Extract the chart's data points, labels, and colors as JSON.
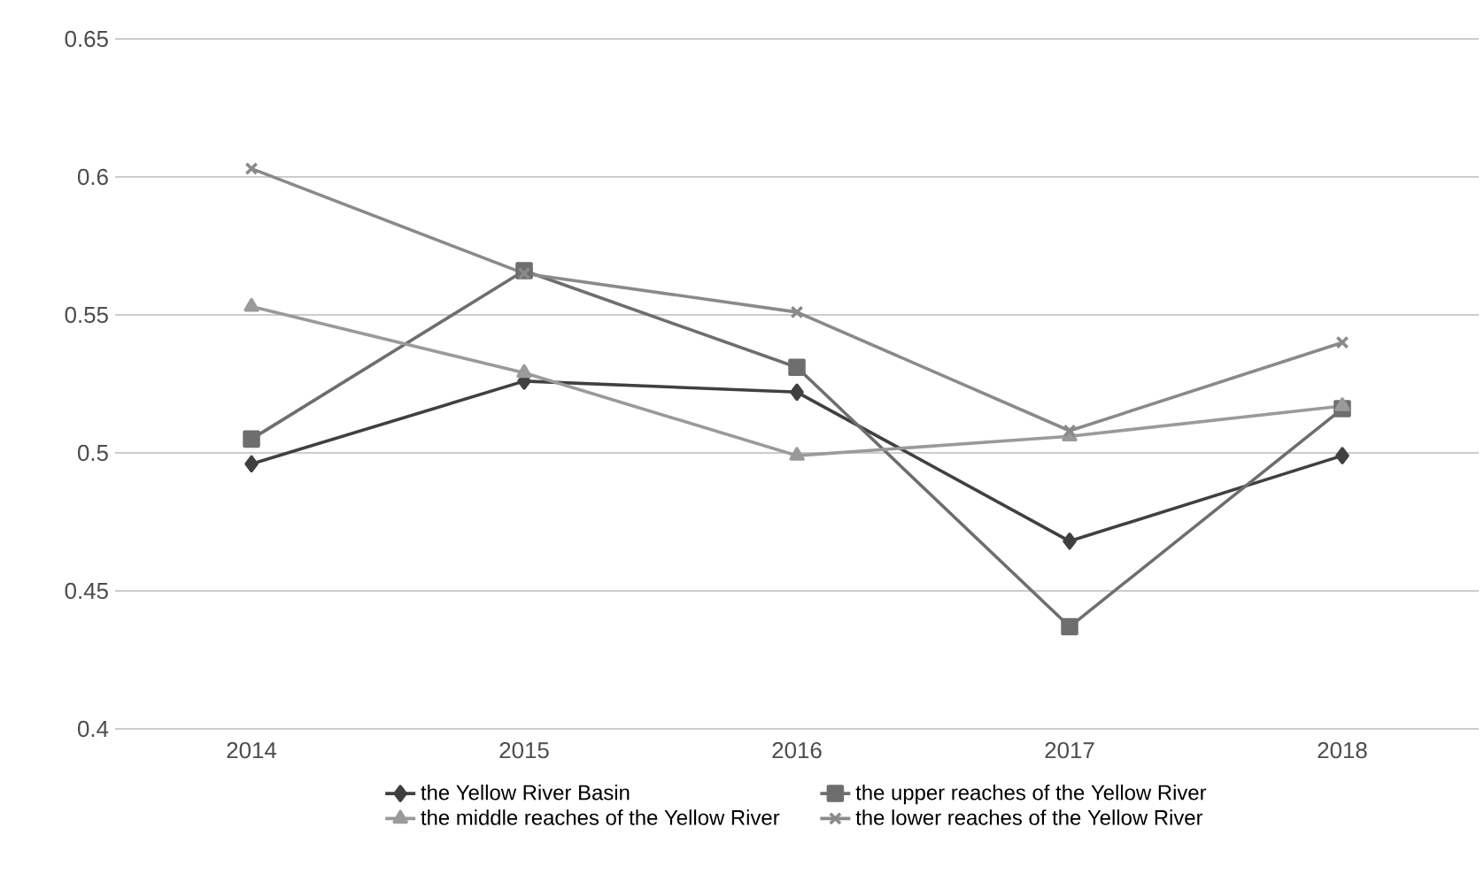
{
  "chart_data": {
    "type": "line",
    "categories": [
      "2014",
      "2015",
      "2016",
      "2017",
      "2018"
    ],
    "series": [
      {
        "name": "the Yellow River Basin",
        "color": "#404040",
        "marker": "diamond",
        "values": [
          0.496,
          0.526,
          0.522,
          0.468,
          0.499
        ]
      },
      {
        "name": "the upper reaches of the Yellow River",
        "color": "#6e6e6e",
        "marker": "square",
        "values": [
          0.505,
          0.566,
          0.531,
          0.437,
          0.516
        ]
      },
      {
        "name": "the middle reaches of the Yellow River",
        "color": "#9a9a9a",
        "marker": "triangle",
        "values": [
          0.553,
          0.529,
          0.499,
          0.506,
          0.517
        ]
      },
      {
        "name": "the lower reaches of the Yellow River",
        "color": "#8a8a8a",
        "marker": "cross",
        "values": [
          0.603,
          0.565,
          0.551,
          0.508,
          0.54
        ]
      }
    ],
    "ylim": [
      0.4,
      0.65
    ],
    "yticks": [
      0.4,
      0.45,
      0.5,
      0.55,
      0.6,
      0.65
    ],
    "grid": "y",
    "legend": "bottom",
    "line_style": "solid"
  }
}
